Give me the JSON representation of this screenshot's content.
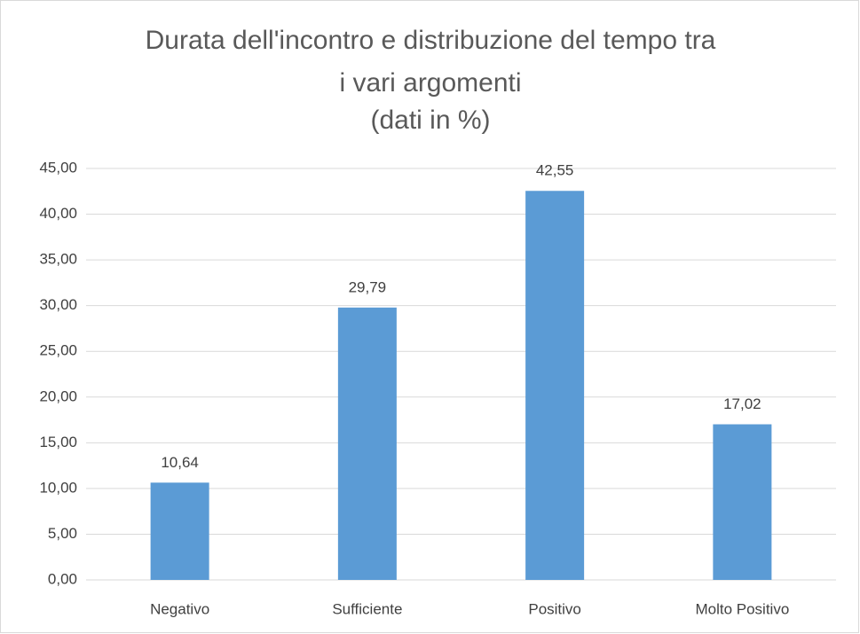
{
  "chart_data": {
    "type": "bar",
    "title": [
      "Durata dell'incontro e distribuzione del tempo tra",
      "i vari argomenti",
      "(dati in %)"
    ],
    "categories": [
      "Negativo",
      "Sufficiente",
      "Positivo",
      "Molto Positivo"
    ],
    "values": [
      10.64,
      29.79,
      42.55,
      17.02
    ],
    "value_labels": [
      "10,64",
      "29,79",
      "42,55",
      "17,02"
    ],
    "color": "#5b9bd5",
    "ylim": [
      0,
      45
    ],
    "yticks": [
      {
        "value": 0,
        "label": "0,00"
      },
      {
        "value": 5,
        "label": "5,00"
      },
      {
        "value": 10,
        "label": "10,00"
      },
      {
        "value": 15,
        "label": "15,00"
      },
      {
        "value": 20,
        "label": "20,00"
      },
      {
        "value": 25,
        "label": "25,00"
      },
      {
        "value": 30,
        "label": "30,00"
      },
      {
        "value": 35,
        "label": "35,00"
      },
      {
        "value": 40,
        "label": "40,00"
      },
      {
        "value": 45,
        "label": "45,00"
      }
    ],
    "grid": true
  }
}
